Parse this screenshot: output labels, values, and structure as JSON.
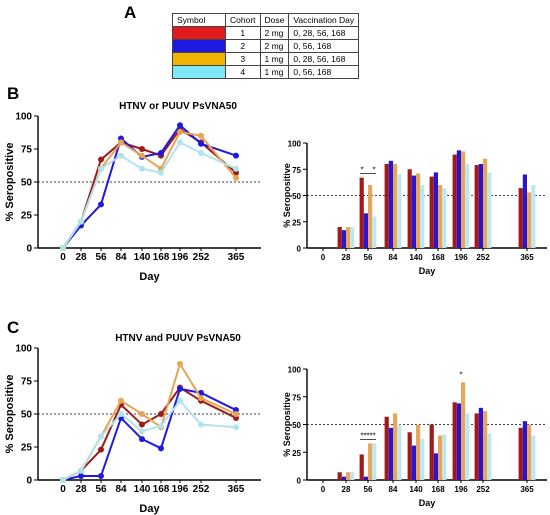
{
  "panels": {
    "a": "A",
    "b": "B",
    "c": "C"
  },
  "legend": {
    "headers": [
      "Symbol",
      "Cohort",
      "Dose",
      "Vaccination Day"
    ],
    "rows": [
      {
        "color": "#e31a1c",
        "cohort": "1",
        "dose": "2 mg",
        "days": "0, 28, 56, 168"
      },
      {
        "color": "#1f1ae0",
        "cohort": "2",
        "dose": "2 mg",
        "days": "0, 56, 168"
      },
      {
        "color": "#f0b400",
        "cohort": "3",
        "dose": "1 mg",
        "days": "0, 28, 56, 168"
      },
      {
        "color": "#7fe8f5",
        "cohort": "4",
        "dose": "1 mg",
        "days": "0, 56, 168"
      }
    ]
  },
  "chart_data": [
    {
      "type": "line",
      "title": "HTNV or PUUV PsVNA50",
      "xlabel": "Day",
      "ylabel": "% Seropositive",
      "x": [
        0,
        28,
        56,
        84,
        140,
        168,
        196,
        252,
        365
      ],
      "x_tick_labels": [
        "0",
        "28",
        "56",
        "84",
        "140",
        "168",
        "196",
        "252",
        "365"
      ],
      "ylim": [
        0,
        100
      ],
      "y_ticks": [
        0,
        25,
        50,
        75,
        100
      ],
      "reference_line": 50,
      "series": [
        {
          "cohort": "1",
          "color": "#9e1b1b",
          "values": [
            0,
            20,
            67,
            80,
            75,
            70,
            90,
            80,
            57
          ]
        },
        {
          "cohort": "2",
          "color": "#1f1ae0",
          "values": [
            0,
            17,
            33,
            83,
            69,
            72,
            93,
            79,
            70
          ]
        },
        {
          "cohort": "3",
          "color": "#e6a455",
          "values": [
            0,
            20,
            60,
            80,
            70,
            60,
            88,
            85,
            53
          ]
        },
        {
          "cohort": "4",
          "color": "#b0e4ec",
          "values": [
            0,
            20,
            60,
            70,
            60,
            57,
            80,
            72,
            60
          ]
        }
      ]
    },
    {
      "type": "bar",
      "xlabel": "Day",
      "ylabel": "% Seropositive",
      "categories": [
        "0",
        "28",
        "56",
        "84",
        "140",
        "168",
        "196",
        "252",
        "365"
      ],
      "ylim": [
        0,
        100
      ],
      "y_ticks": [
        0,
        25,
        50,
        75,
        100
      ],
      "reference_line": 50,
      "series": [
        {
          "cohort": "1",
          "color": "#a01a1a",
          "values": [
            0,
            20,
            67,
            80,
            75,
            68,
            89,
            79,
            57
          ]
        },
        {
          "cohort": "2",
          "color": "#2a14d0",
          "values": [
            0,
            17,
            33,
            83,
            69,
            72,
            93,
            80,
            70
          ]
        },
        {
          "cohort": "3",
          "color": "#e8a55c",
          "values": [
            0,
            20,
            60,
            80,
            71,
            60,
            92,
            85,
            53
          ]
        },
        {
          "cohort": "4",
          "color": "#bfe8ee",
          "values": [
            0,
            20,
            30,
            70,
            60,
            57,
            80,
            72,
            60
          ]
        }
      ],
      "annotations": [
        {
          "category": "56",
          "labels": [
            "*",
            "*"
          ]
        }
      ]
    },
    {
      "type": "line",
      "title": "HTNV and PUUV PsVNA50",
      "xlabel": "Day",
      "ylabel": "% Seropositive",
      "x": [
        0,
        28,
        56,
        84,
        140,
        168,
        196,
        252,
        365
      ],
      "x_tick_labels": [
        "0",
        "28",
        "56",
        "84",
        "140",
        "168",
        "196",
        "252",
        "365"
      ],
      "ylim": [
        0,
        100
      ],
      "y_ticks": [
        0,
        25,
        50,
        75,
        100
      ],
      "reference_line": 50,
      "series": [
        {
          "cohort": "1",
          "color": "#9e1b1b",
          "values": [
            0,
            7,
            23,
            57,
            42,
            50,
            70,
            60,
            47
          ]
        },
        {
          "cohort": "2",
          "color": "#1f1ae0",
          "values": [
            0,
            3,
            3,
            47,
            31,
            24,
            69,
            66,
            53
          ]
        },
        {
          "cohort": "3",
          "color": "#e6a455",
          "values": [
            0,
            7,
            33,
            60,
            50,
            40,
            88,
            62,
            50
          ]
        },
        {
          "cohort": "4",
          "color": "#b0e4ec",
          "values": [
            0,
            7,
            33,
            50,
            37,
            41,
            60,
            42,
            40
          ]
        }
      ]
    },
    {
      "type": "bar",
      "xlabel": "Day",
      "ylabel": "% Seropositive",
      "categories": [
        "0",
        "28",
        "56",
        "84",
        "140",
        "168",
        "196",
        "252",
        "365"
      ],
      "ylim": [
        0,
        100
      ],
      "y_ticks": [
        0,
        25,
        50,
        75,
        100
      ],
      "reference_line": 50,
      "series": [
        {
          "cohort": "1",
          "color": "#a01a1a",
          "values": [
            0,
            7,
            23,
            57,
            43,
            50,
            70,
            60,
            47
          ]
        },
        {
          "cohort": "2",
          "color": "#2a14d0",
          "values": [
            0,
            3,
            3,
            47,
            31,
            24,
            69,
            65,
            53
          ]
        },
        {
          "cohort": "3",
          "color": "#e8a55c",
          "values": [
            0,
            7,
            33,
            60,
            50,
            40,
            88,
            62,
            50
          ]
        },
        {
          "cohort": "4",
          "color": "#bfe8ee",
          "values": [
            0,
            7,
            33,
            50,
            37,
            41,
            60,
            42,
            40
          ]
        }
      ],
      "annotations": [
        {
          "category": "56",
          "labels": [
            "*",
            "*",
            "*",
            "*",
            "*"
          ]
        },
        {
          "category": "196",
          "labels": [
            "*"
          ]
        }
      ]
    }
  ]
}
